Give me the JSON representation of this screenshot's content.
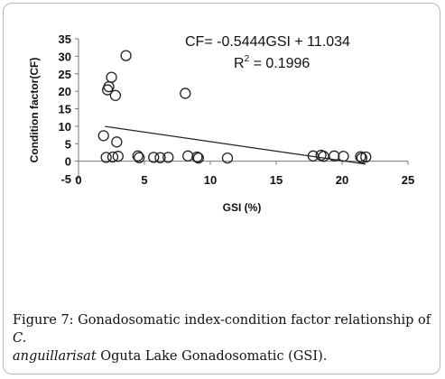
{
  "chart_data": {
    "type": "scatter",
    "xlabel": "GSI (%)",
    "ylabel": "Condition factor(CF)",
    "xlim": [
      0,
      25
    ],
    "ylim": [
      -5,
      35
    ],
    "xticks": [
      0,
      5,
      10,
      15,
      20,
      25
    ],
    "yticks": [
      -5,
      0,
      5,
      10,
      15,
      20,
      25,
      30,
      35
    ],
    "grid": false,
    "legend": "none",
    "marker": "open-circle",
    "marker_color": "#222222",
    "series": [
      {
        "points": [
          {
            "x": 1.9,
            "y": 7.3
          },
          {
            "x": 2.2,
            "y": 20.4
          },
          {
            "x": 2.3,
            "y": 21.3
          },
          {
            "x": 2.5,
            "y": 24.0
          },
          {
            "x": 2.8,
            "y": 18.8
          },
          {
            "x": 3.6,
            "y": 30.2
          },
          {
            "x": 2.9,
            "y": 5.5
          },
          {
            "x": 2.1,
            "y": 1.1
          },
          {
            "x": 2.6,
            "y": 1.2
          },
          {
            "x": 3.0,
            "y": 1.4
          },
          {
            "x": 4.5,
            "y": 1.5
          },
          {
            "x": 4.6,
            "y": 1.0
          },
          {
            "x": 5.7,
            "y": 1.1
          },
          {
            "x": 6.2,
            "y": 1.0
          },
          {
            "x": 6.8,
            "y": 1.1
          },
          {
            "x": 8.1,
            "y": 19.4
          },
          {
            "x": 8.3,
            "y": 1.5
          },
          {
            "x": 9.0,
            "y": 1.2
          },
          {
            "x": 9.1,
            "y": 0.9
          },
          {
            "x": 11.3,
            "y": 0.9
          },
          {
            "x": 17.8,
            "y": 1.5
          },
          {
            "x": 18.4,
            "y": 1.7
          },
          {
            "x": 18.6,
            "y": 1.4
          },
          {
            "x": 19.4,
            "y": 1.5
          },
          {
            "x": 20.1,
            "y": 1.4
          },
          {
            "x": 21.4,
            "y": 1.3
          },
          {
            "x": 21.5,
            "y": 0.9
          },
          {
            "x": 21.8,
            "y": 1.2
          }
        ]
      }
    ],
    "trendline": {
      "slope": -0.5444,
      "intercept": 11.034,
      "x_from": 2,
      "x_to": 21.8,
      "color": "#222222"
    },
    "annotations": {
      "equation": "CF= -0.5444GSI + 11.034",
      "r2_prefix": "R",
      "r2_sup": "2",
      "r2_value": " = 0.1996"
    }
  },
  "caption": {
    "label": "Figure 7:",
    "text_before_italic": " Gonadosomatic index-condition factor relationship of ",
    "italic_1": "C.",
    "italic_2": "anguillarisat",
    "text_after_italic": " Oguta Lake Gonadosomatic (GSI)."
  }
}
